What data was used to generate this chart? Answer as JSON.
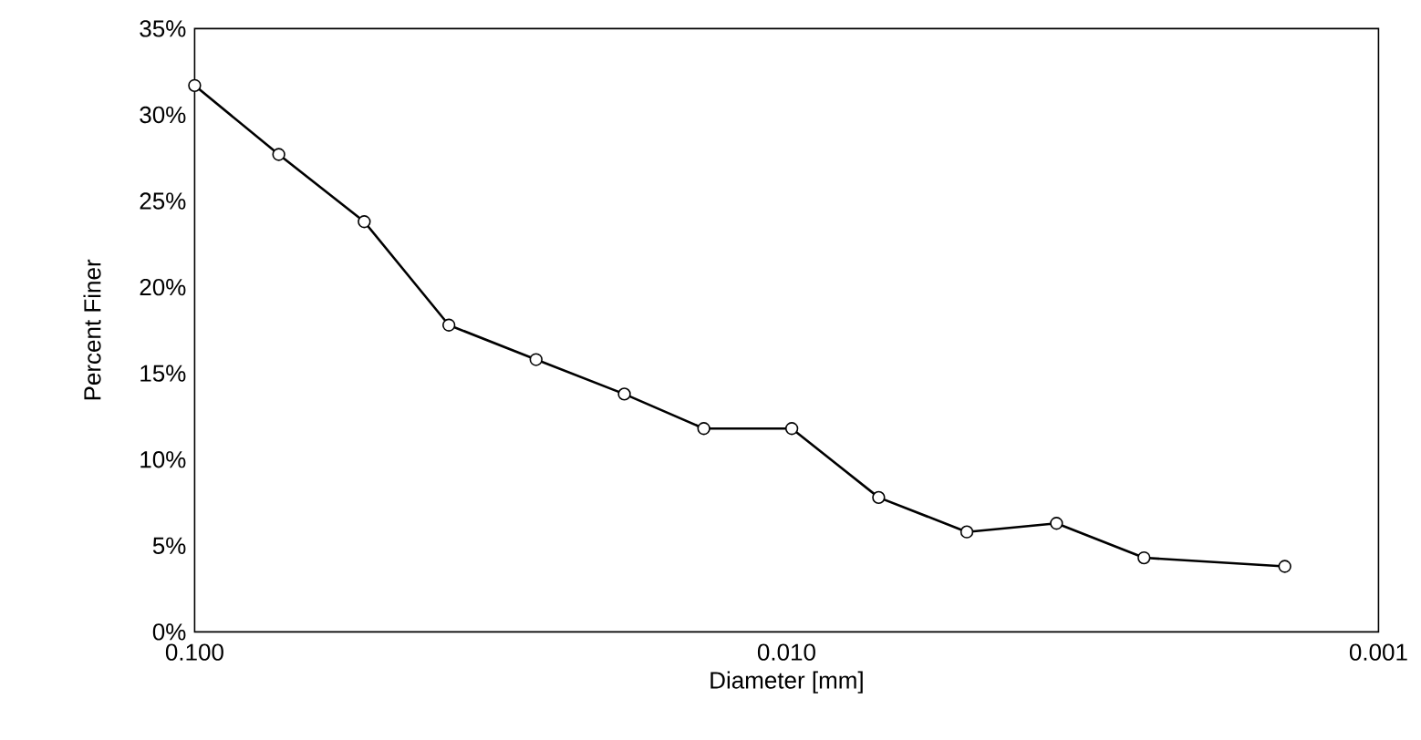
{
  "chart_data": {
    "type": "line",
    "xlabel": "Diameter [mm]",
    "ylabel": "Percent Finer",
    "log": "x",
    "marker": "circle",
    "line_style": "solid",
    "xlim": [
      0.1,
      0.001
    ],
    "xticks": [
      {
        "value": 0.1,
        "label": "0.100"
      },
      {
        "value": 0.01,
        "label": "0.010"
      },
      {
        "value": 0.001,
        "label": "0.001"
      }
    ],
    "ylim": [
      0,
      35
    ],
    "yticks": [
      {
        "value": 0,
        "label": "0%"
      },
      {
        "value": 5,
        "label": "5%"
      },
      {
        "value": 10,
        "label": "10%"
      },
      {
        "value": 15,
        "label": "15%"
      },
      {
        "value": 20,
        "label": "20%"
      },
      {
        "value": 25,
        "label": "25%"
      },
      {
        "value": 30,
        "label": "30%"
      },
      {
        "value": 35,
        "label": "35%"
      }
    ],
    "x": [
      0.1,
      0.0721,
      0.0517,
      0.0372,
      0.0265,
      0.0188,
      0.0138,
      0.0098,
      0.00699,
      0.00496,
      0.0035,
      0.00249,
      0.00144
    ],
    "series": [
      {
        "color": "#000000",
        "values": [
          31.7,
          27.7,
          23.8,
          17.8,
          15.8,
          13.8,
          11.8,
          11.8,
          7.8,
          5.8,
          6.3,
          4.3,
          3.8
        ]
      }
    ]
  }
}
